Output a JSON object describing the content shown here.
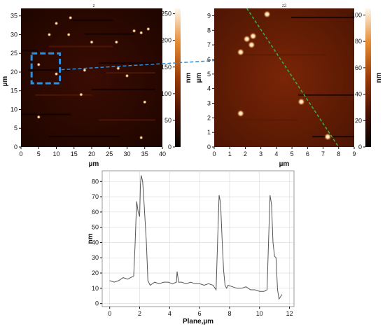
{
  "colors": {
    "afm_dark": "#1a0500",
    "afm_mid": "#6b1e04",
    "afm_bright": "#f0a050",
    "selection": "#2a8fe0",
    "profile_line": "#2fb54a",
    "trace": "#555555"
  },
  "chart_data": [
    {
      "type": "heatmap",
      "title": "z",
      "xlabel": "µm",
      "ylabel": "µm",
      "xlim": [
        0,
        40
      ],
      "ylim": [
        0,
        37
      ],
      "x_ticks": [
        "0",
        "5",
        "10",
        "15",
        "20",
        "25",
        "30",
        "35",
        "40"
      ],
      "y_ticks": [
        "0",
        "5",
        "10",
        "15",
        "20",
        "25",
        "30",
        "35"
      ],
      "colorbar": {
        "label": "nm",
        "range": [
          0,
          260
        ],
        "ticks": [
          "0",
          "50",
          "100",
          "150",
          "200",
          "250"
        ]
      },
      "particles": [
        {
          "x": 14,
          "y": 34.5
        },
        {
          "x": 10,
          "y": 33
        },
        {
          "x": 8,
          "y": 30
        },
        {
          "x": 13.5,
          "y": 30
        },
        {
          "x": 32,
          "y": 31
        },
        {
          "x": 34,
          "y": 30.5
        },
        {
          "x": 36,
          "y": 31.5
        },
        {
          "x": 20,
          "y": 28
        },
        {
          "x": 27,
          "y": 28
        },
        {
          "x": 5,
          "y": 22
        },
        {
          "x": 10,
          "y": 19.5
        },
        {
          "x": 18,
          "y": 20.5
        },
        {
          "x": 27.5,
          "y": 21
        },
        {
          "x": 30,
          "y": 19
        },
        {
          "x": 17,
          "y": 14
        },
        {
          "x": 35,
          "y": 12
        },
        {
          "x": 5,
          "y": 8
        },
        {
          "x": 34,
          "y": 2.5
        }
      ],
      "selection_box": {
        "x": [
          3,
          11
        ],
        "y": [
          17,
          25
        ]
      }
    },
    {
      "type": "heatmap",
      "title": "z2",
      "xlabel": "µm",
      "ylabel": "µm",
      "xlim": [
        0,
        9
      ],
      "ylim": [
        0,
        9.5
      ],
      "x_ticks": [
        "0",
        "1",
        "2",
        "3",
        "4",
        "5",
        "6",
        "7",
        "8",
        "9"
      ],
      "y_ticks": [
        "0",
        "1",
        "2",
        "3",
        "4",
        "5",
        "6",
        "7",
        "8",
        "9"
      ],
      "colorbar": {
        "label": "nm",
        "range": [
          0,
          105
        ],
        "ticks": [
          "0",
          "20",
          "40",
          "60",
          "80",
          "100"
        ]
      },
      "particles": [
        {
          "x": 3.4,
          "y": 9.1
        },
        {
          "x": 2.1,
          "y": 7.4
        },
        {
          "x": 2.5,
          "y": 7.6
        },
        {
          "x": 2.4,
          "y": 7.0
        },
        {
          "x": 1.7,
          "y": 6.5
        },
        {
          "x": 5.6,
          "y": 3.1
        },
        {
          "x": 1.7,
          "y": 2.3
        },
        {
          "x": 7.3,
          "y": 0.7
        }
      ],
      "profile_line": {
        "from": [
          2.1,
          9.5
        ],
        "to": [
          8.0,
          0
        ]
      }
    },
    {
      "type": "line",
      "xlabel": "Plane,µm",
      "ylabel": "nm",
      "xlim": [
        -0.5,
        12.3
      ],
      "ylim": [
        -2,
        87
      ],
      "x_ticks": [
        0,
        2,
        4,
        6,
        8,
        10,
        12
      ],
      "y_ticks": [
        0,
        10,
        20,
        30,
        40,
        50,
        60,
        70,
        80
      ],
      "grid": true,
      "series": [
        {
          "x": [
            0,
            0.3,
            0.6,
            0.9,
            1.2,
            1.4,
            1.6,
            1.7,
            1.8,
            1.9,
            2.0,
            2.05,
            2.1,
            2.2,
            2.3,
            2.45,
            2.55,
            2.7,
            3.0,
            3.3,
            3.6,
            3.9,
            4.2,
            4.45,
            4.5,
            4.6,
            4.8,
            5.1,
            5.4,
            5.7,
            6.0,
            6.3,
            6.6,
            6.9,
            7.1,
            7.2,
            7.3,
            7.4,
            7.5,
            7.6,
            7.7,
            7.8,
            7.9,
            8.2,
            8.5,
            8.8,
            9.1,
            9.4,
            9.7,
            10.0,
            10.3,
            10.5,
            10.6,
            10.7,
            10.8,
            10.9,
            11.0,
            11.1,
            11.2,
            11.3,
            11.5
          ],
          "y": [
            15,
            14,
            15,
            17,
            16,
            17,
            18,
            40,
            67,
            60,
            57,
            78,
            84,
            80,
            65,
            40,
            15,
            12,
            14,
            13,
            14,
            14,
            13,
            14,
            21,
            14,
            14,
            13,
            14,
            13,
            13,
            12,
            13,
            12,
            9,
            40,
            71,
            66,
            42,
            22,
            12,
            10,
            12,
            11,
            10,
            10,
            11,
            9,
            9,
            8,
            8,
            9,
            40,
            71,
            65,
            40,
            31,
            30,
            9,
            3,
            6
          ]
        }
      ]
    }
  ]
}
